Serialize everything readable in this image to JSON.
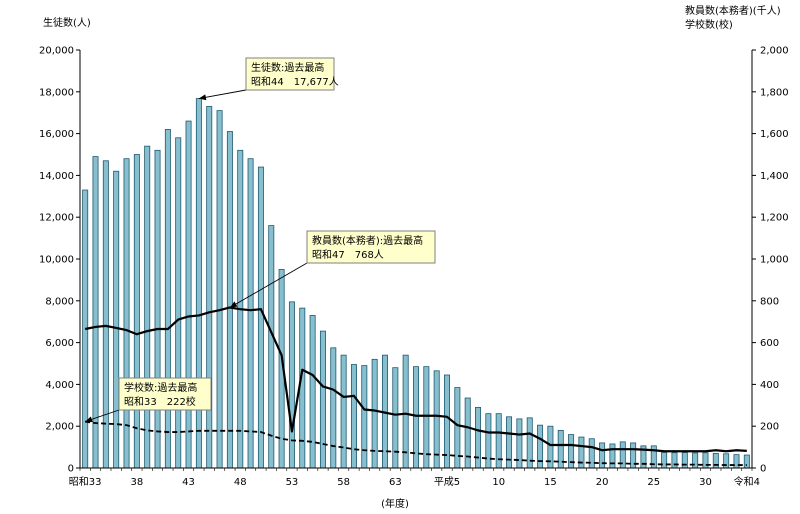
{
  "chart_data": {
    "type": "bar",
    "left_axis_title": "生徒数(人)",
    "right_axis_title_line1": "教員数(本務者)(千人)",
    "right_axis_title_line2": "学校数(校)",
    "xlabel": "(年度)",
    "ylim_left": [
      0,
      20000
    ],
    "ylim_right": [
      0,
      2000
    ],
    "left_ticks": [
      "0",
      "2,000",
      "4,000",
      "6,000",
      "8,000",
      "10,000",
      "12,000",
      "14,000",
      "16,000",
      "18,000",
      "20,000"
    ],
    "right_ticks": [
      "0",
      "200",
      "400",
      "600",
      "800",
      "1,000",
      "1,200",
      "1,400",
      "1,600",
      "1,800",
      "2,000"
    ],
    "x_tick_labels": [
      {
        "index": 0,
        "label": "昭和33"
      },
      {
        "index": 5,
        "label": "38"
      },
      {
        "index": 10,
        "label": "43"
      },
      {
        "index": 15,
        "label": "48"
      },
      {
        "index": 20,
        "label": "53"
      },
      {
        "index": 25,
        "label": "58"
      },
      {
        "index": 30,
        "label": "63"
      },
      {
        "index": 35,
        "label": "平成5"
      },
      {
        "index": 40,
        "label": "10"
      },
      {
        "index": 45,
        "label": "15"
      },
      {
        "index": 50,
        "label": "20"
      },
      {
        "index": 55,
        "label": "25"
      },
      {
        "index": 60,
        "label": "30"
      },
      {
        "index": 64,
        "label": "令和4"
      }
    ],
    "series": [
      {
        "name": "生徒数",
        "axis": "left",
        "kind": "bar",
        "values": [
          13300,
          14900,
          14700,
          14200,
          14800,
          15000,
          15400,
          15200,
          16200,
          15800,
          16600,
          17677,
          17300,
          17100,
          16100,
          15200,
          14800,
          14400,
          11600,
          9500,
          7950,
          7650,
          7300,
          6550,
          5750,
          5400,
          4950,
          4900,
          5200,
          5400,
          4800,
          5400,
          4850,
          4850,
          4650,
          4450,
          3850,
          3350,
          2900,
          2600,
          2600,
          2450,
          2350,
          2400,
          2050,
          2000,
          1800,
          1600,
          1480,
          1400,
          1200,
          1150,
          1250,
          1200,
          1060,
          1060,
          750,
          730,
          740,
          720,
          730,
          700,
          680,
          640,
          620
        ]
      },
      {
        "name": "教員数(本務者)",
        "axis": "right",
        "kind": "line",
        "values": [
          665,
          675,
          680,
          670,
          660,
          640,
          655,
          665,
          665,
          710,
          725,
          730,
          745,
          755,
          768,
          760,
          755,
          760,
          650,
          540,
          175,
          470,
          445,
          390,
          375,
          340,
          345,
          280,
          275,
          265,
          255,
          260,
          250,
          250,
          250,
          245,
          205,
          195,
          180,
          170,
          170,
          165,
          160,
          165,
          140,
          110,
          110,
          110,
          105,
          100,
          85,
          90,
          90,
          90,
          88,
          85,
          80,
          80,
          80,
          80,
          80,
          85,
          80,
          85,
          82
        ]
      },
      {
        "name": "学校数",
        "axis": "right",
        "kind": "dashed-line",
        "values": [
          222,
          215,
          212,
          210,
          205,
          190,
          180,
          175,
          172,
          172,
          175,
          178,
          178,
          178,
          178,
          178,
          175,
          172,
          155,
          140,
          132,
          130,
          125,
          115,
          105,
          98,
          90,
          85,
          82,
          80,
          78,
          75,
          70,
          66,
          64,
          62,
          58,
          55,
          50,
          45,
          42,
          40,
          38,
          35,
          33,
          32,
          30,
          28,
          26,
          25,
          23,
          22,
          22,
          20,
          20,
          18,
          17,
          17,
          16,
          16,
          15,
          15,
          14,
          14,
          14
        ]
      }
    ],
    "annotations": [
      {
        "title": "生徒数:過去最高",
        "detail": "昭和44　17,677人",
        "target_index": 11,
        "target_series": 0
      },
      {
        "title": "教員数(本務者):過去最高",
        "detail": "昭和47　768人",
        "target_index": 14,
        "target_series": 1
      },
      {
        "title": "学校数:過去最高",
        "detail": "昭和33　222校",
        "target_index": 0,
        "target_series": 2
      }
    ],
    "colors": {
      "bar_fill": "#87bfcf",
      "bar_stroke": "#1e5a70",
      "line": "#000000",
      "callout_fill": "#ffffcc",
      "callout_stroke": "#808080"
    }
  }
}
